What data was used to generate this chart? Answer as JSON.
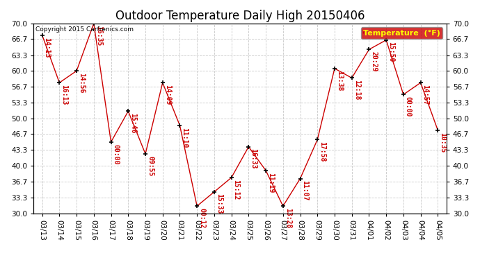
{
  "title": "Outdoor Temperature Daily High 20150406",
  "copyright": "Copyright 2015 Carfrenics.com",
  "legend_label": "Temperature  (°F)",
  "dates": [
    "03/13",
    "03/14",
    "03/15",
    "03/16",
    "03/17",
    "03/18",
    "03/19",
    "03/20",
    "03/21",
    "03/22",
    "03/23",
    "03/24",
    "03/25",
    "03/26",
    "03/27",
    "03/28",
    "03/29",
    "03/30",
    "03/31",
    "04/01",
    "04/02",
    "04/03",
    "04/04",
    "04/05"
  ],
  "values": [
    67.5,
    57.5,
    60.0,
    70.0,
    45.0,
    51.5,
    42.5,
    57.5,
    48.5,
    31.5,
    34.5,
    37.5,
    44.0,
    39.0,
    31.5,
    37.3,
    45.5,
    60.5,
    58.5,
    64.5,
    66.5,
    55.0,
    57.5,
    47.5
  ],
  "labels": [
    "14:13",
    "16:13",
    "14:56",
    "16:35",
    "00:00",
    "15:46",
    "09:55",
    "14:09",
    "11:10",
    "00:12",
    "15:33",
    "15:12",
    "16:33",
    "11:19",
    "13:28",
    "11:07",
    "17:58",
    "13:38",
    "12:18",
    "20:29",
    "15:50",
    "00:00",
    "14:57",
    "10:35"
  ],
  "line_color": "#cc0000",
  "marker_color": "#000000",
  "label_color": "#cc0000",
  "background_color": "#ffffff",
  "grid_color": "#c8c8c8",
  "ylim": [
    30.0,
    70.0
  ],
  "yticks": [
    30.0,
    33.3,
    36.7,
    40.0,
    43.3,
    46.7,
    50.0,
    53.3,
    56.7,
    60.0,
    63.3,
    66.7,
    70.0
  ],
  "ytick_labels": [
    "30.0",
    "33.3",
    "36.7",
    "40.0",
    "43.3",
    "46.7",
    "50.0",
    "53.3",
    "56.7",
    "60.0",
    "63.3",
    "66.7",
    "70.0"
  ],
  "legend_bg": "#cc0000",
  "legend_text_color": "#ffff00",
  "title_fontsize": 12,
  "label_fontsize": 7,
  "tick_fontsize": 7.5,
  "copyright_fontsize": 6.5
}
